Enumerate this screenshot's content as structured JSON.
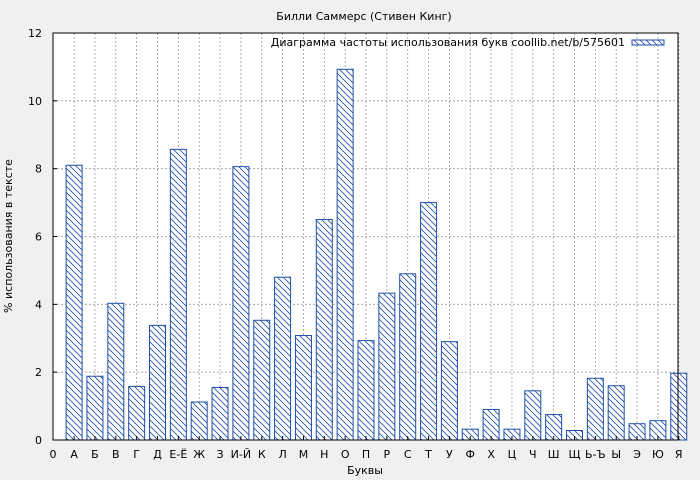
{
  "chart_data": {
    "type": "bar",
    "title": "Билли Саммерс (Стивен Кинг)",
    "xlabel": "Буквы",
    "ylabel": "% использования в тексте",
    "ylim": [
      0,
      12
    ],
    "yticks": [
      0,
      2,
      4,
      6,
      8,
      10,
      12
    ],
    "grid": true,
    "legend_position": "top-right",
    "x_origin_label": "0",
    "categories": [
      "А",
      "Б",
      "В",
      "Г",
      "Д",
      "Е-Ё",
      "Ж",
      "З",
      "И-Й",
      "К",
      "Л",
      "М",
      "Н",
      "О",
      "П",
      "Р",
      "С",
      "Т",
      "У",
      "Ф",
      "Х",
      "Ц",
      "Ч",
      "Ш",
      "Щ",
      "Ь-Ъ",
      "Ы",
      "Э",
      "Ю",
      "Я"
    ],
    "series": [
      {
        "name": "Диаграмма частоты использования букв coollib.net/b/575601",
        "color": "#1f4fa8",
        "values": [
          8.1,
          1.88,
          4.03,
          1.58,
          3.38,
          8.57,
          1.12,
          1.55,
          8.06,
          3.53,
          4.8,
          3.08,
          6.5,
          10.93,
          2.93,
          4.33,
          4.9,
          7.0,
          2.9,
          0.32,
          0.9,
          0.32,
          1.45,
          0.75,
          0.28,
          1.82,
          1.6,
          0.48,
          0.57,
          1.97
        ]
      }
    ]
  }
}
